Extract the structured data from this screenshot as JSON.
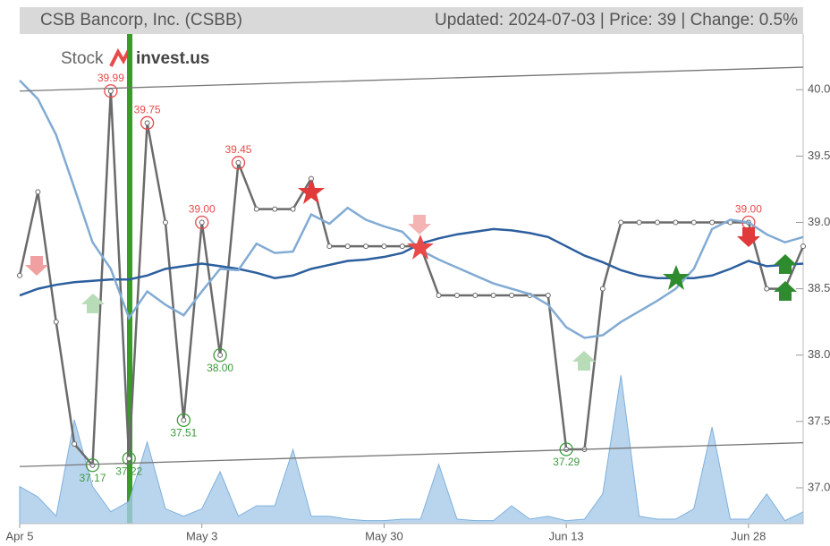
{
  "chart_data": {
    "type": "line",
    "title": "CSB Bancorp, Inc. (CSBB)",
    "subtitle": "Updated: 2024-07-03 | Price: 39 | Change: 0.5%",
    "logo": [
      "Stock",
      "invest.us"
    ],
    "x": [
      "Apr 5",
      null,
      null,
      null,
      null,
      null,
      null,
      null,
      null,
      null,
      "May 3",
      null,
      null,
      null,
      null,
      null,
      null,
      null,
      null,
      null,
      "May 30",
      null,
      null,
      null,
      null,
      null,
      null,
      null,
      null,
      null,
      "Jun 13",
      null,
      null,
      null,
      null,
      null,
      null,
      null,
      null,
      null,
      "Jun 28",
      null,
      null,
      null
    ],
    "series": [
      {
        "name": "Price",
        "color": "#6b6b6b",
        "values": [
          38.6,
          39.23,
          38.25,
          37.33,
          37.17,
          39.99,
          37.22,
          39.75,
          39.0,
          37.51,
          39.0,
          38.0,
          39.45,
          39.1,
          39.1,
          39.1,
          39.33,
          38.82,
          38.82,
          38.82,
          38.82,
          38.82,
          38.82,
          38.45,
          38.45,
          38.45,
          38.45,
          38.45,
          38.45,
          38.45,
          37.29,
          37.29,
          38.5,
          39.0,
          39.0,
          39.0,
          39.0,
          39.0,
          39.0,
          39.0,
          39.0,
          38.5,
          38.5,
          38.82
        ],
        "value_labels": [
          null,
          null,
          null,
          null,
          "37.17",
          "39.99",
          "37.22",
          "39.75",
          null,
          "37.51",
          "39.00",
          "38.00",
          "39.45",
          null,
          null,
          null,
          null,
          null,
          null,
          null,
          null,
          null,
          null,
          null,
          null,
          null,
          null,
          null,
          null,
          null,
          "37.29",
          null,
          null,
          null,
          null,
          null,
          null,
          null,
          null,
          null,
          "39.00",
          null,
          null,
          null
        ]
      },
      {
        "color": "#2c5f9e",
        "values": [
          38.45,
          38.5,
          38.53,
          38.55,
          38.56,
          38.57,
          38.57,
          38.6,
          38.65,
          38.67,
          38.69,
          38.67,
          38.65,
          38.62,
          38.58,
          38.6,
          38.65,
          38.68,
          38.71,
          38.72,
          38.74,
          38.77,
          38.84,
          38.88,
          38.91,
          38.93,
          38.95,
          38.94,
          38.92,
          38.89,
          38.82,
          38.75,
          38.7,
          38.64,
          38.6,
          38.58,
          38.58,
          38.58,
          38.6,
          38.65,
          38.71,
          38.67,
          38.68,
          38.69
        ]
      },
      {
        "color": "#82abd4",
        "values": [
          40.07,
          39.93,
          39.66,
          39.26,
          38.85,
          38.65,
          38.28,
          38.48,
          38.38,
          38.3,
          38.48,
          38.65,
          38.64,
          38.84,
          38.77,
          38.78,
          39.06,
          38.99,
          39.11,
          39.02,
          38.97,
          38.93,
          38.79,
          38.72,
          38.66,
          38.6,
          38.54,
          38.5,
          38.46,
          38.38,
          38.21,
          38.13,
          38.15,
          38.25,
          38.33,
          38.41,
          38.5,
          38.65,
          38.95,
          39.02,
          39.0,
          38.91,
          38.85,
          38.89
        ]
      },
      {
        "color": "#a8cbea",
        "axis": "y2",
        "values": [
          25,
          18,
          5,
          70,
          25,
          8,
          15,
          55,
          10,
          5,
          10,
          35,
          5,
          12,
          12,
          50,
          5,
          5,
          3,
          2,
          2,
          3,
          3,
          40,
          3,
          2,
          2,
          12,
          3,
          5,
          2,
          3,
          20,
          100,
          5,
          3,
          3,
          10,
          65,
          3,
          3,
          20,
          2,
          8
        ]
      }
    ],
    "trendlines": [
      {
        "color": "#777777",
        "values": [
          39.99,
          40.17
        ]
      },
      {
        "color": "#777777",
        "values": [
          37.16,
          37.34
        ]
      }
    ],
    "high_color": "#e84a4a",
    "low_color": "#3d9a3d",
    "ylim": [
      36.73,
      40.42
    ],
    "yticks": [
      {
        "value": 37,
        "label": "37.0"
      },
      {
        "value": 37.5,
        "label": "37.5"
      },
      {
        "value": 38,
        "label": "38.0"
      },
      {
        "value": 38.5,
        "label": "38.5"
      },
      {
        "value": 39,
        "label": "39.0"
      },
      {
        "value": 39.5,
        "label": "39.5"
      },
      {
        "value": 40,
        "label": "40.0"
      }
    ],
    "y2lim": [
      0,
      330
    ]
  }
}
